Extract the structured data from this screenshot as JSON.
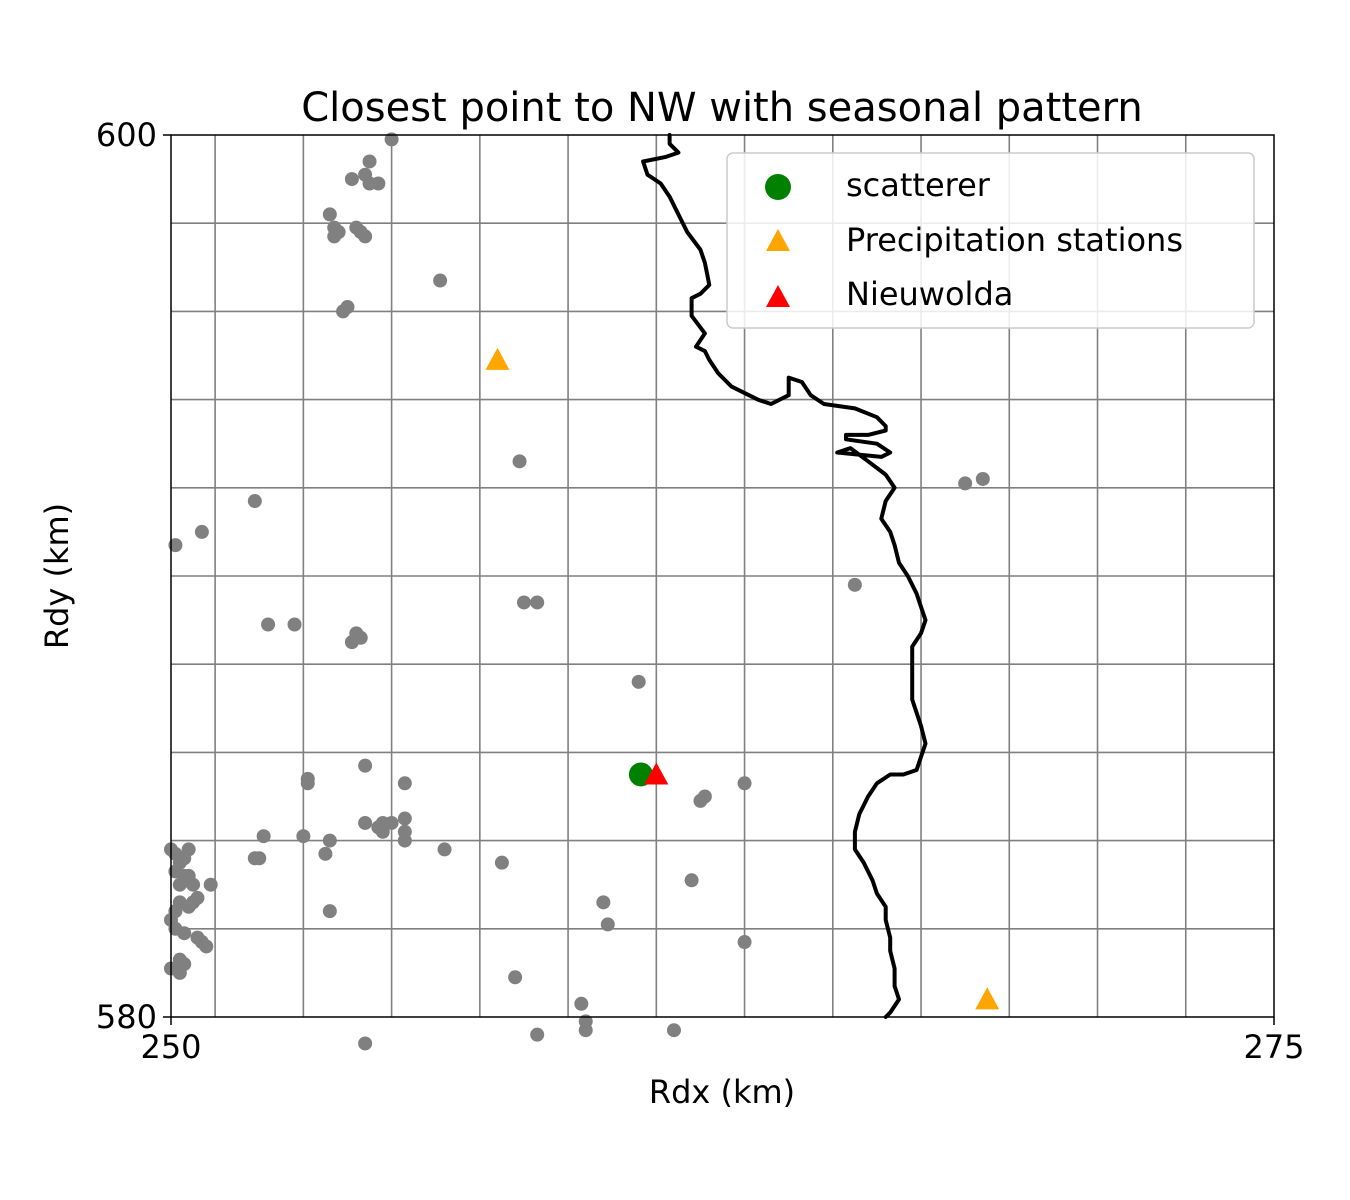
{
  "chart_data": {
    "type": "scatter",
    "title": "Closest point to NW with seasonal pattern",
    "xlabel": "Rdx (km)",
    "ylabel": "Rdy (km)",
    "xlim": [
      250,
      275
    ],
    "ylim": [
      580,
      600
    ],
    "x_ticks": [
      250,
      275
    ],
    "y_ticks": [
      580,
      600
    ],
    "x_tick_labels": [
      "250",
      "275"
    ],
    "y_tick_labels": [
      "580",
      "600"
    ],
    "grid": true,
    "grid_x": [
      251,
      253,
      255,
      257,
      259,
      261,
      263,
      265,
      267,
      269,
      271,
      273
    ],
    "grid_y": [
      582,
      584,
      586,
      588,
      590,
      592,
      594,
      596,
      598
    ],
    "legend_position": "top-right",
    "legend": [
      {
        "label": "scatterer",
        "marker": "circle",
        "color": "#008000"
      },
      {
        "label": "Precipitation stations",
        "marker": "triangle",
        "color": "#FFA500"
      },
      {
        "label": "Nieuwolda",
        "marker": "triangle",
        "color": "#FF0000"
      }
    ],
    "background_points": {
      "color": "#808080",
      "points": [
        [
          255.0,
          599.9
        ],
        [
          254.5,
          599.4
        ],
        [
          254.4,
          599.1
        ],
        [
          254.5,
          598.9
        ],
        [
          254.7,
          598.9
        ],
        [
          254.1,
          599.0
        ],
        [
          253.6,
          598.2
        ],
        [
          253.7,
          597.9
        ],
        [
          253.8,
          597.8
        ],
        [
          253.7,
          597.7
        ],
        [
          254.2,
          597.9
        ],
        [
          254.4,
          597.7
        ],
        [
          254.3,
          597.8
        ],
        [
          256.1,
          596.7
        ],
        [
          254.0,
          596.1
        ],
        [
          253.9,
          596.0
        ],
        [
          257.9,
          592.6
        ],
        [
          251.9,
          591.7
        ],
        [
          250.1,
          590.7
        ],
        [
          250.7,
          591.0
        ],
        [
          265.5,
          589.8
        ],
        [
          268.0,
          592.1
        ],
        [
          268.4,
          592.2
        ],
        [
          258.0,
          589.4
        ],
        [
          258.3,
          589.4
        ],
        [
          252.2,
          588.9
        ],
        [
          252.8,
          588.9
        ],
        [
          254.2,
          588.7
        ],
        [
          254.3,
          588.6
        ],
        [
          254.1,
          588.5
        ],
        [
          260.6,
          587.6
        ],
        [
          254.4,
          585.7
        ],
        [
          255.3,
          585.3
        ],
        [
          263.0,
          585.3
        ],
        [
          262.0,
          584.9
        ],
        [
          262.1,
          585.0
        ],
        [
          253.1,
          585.4
        ],
        [
          253.1,
          585.3
        ],
        [
          254.4,
          584.4
        ],
        [
          254.7,
          584.3
        ],
        [
          254.8,
          584.4
        ],
        [
          255.0,
          584.4
        ],
        [
          254.8,
          584.2
        ],
        [
          255.3,
          584.2
        ],
        [
          255.3,
          584.0
        ],
        [
          255.3,
          584.5
        ],
        [
          252.1,
          584.1
        ],
        [
          253.0,
          584.1
        ],
        [
          253.6,
          584.0
        ],
        [
          252.0,
          583.6
        ],
        [
          251.9,
          583.6
        ],
        [
          256.2,
          583.8
        ],
        [
          253.5,
          583.7
        ],
        [
          257.5,
          583.5
        ],
        [
          261.8,
          583.1
        ],
        [
          250.0,
          583.8
        ],
        [
          250.1,
          583.7
        ],
        [
          250.2,
          583.5
        ],
        [
          250.3,
          583.6
        ],
        [
          250.4,
          583.8
        ],
        [
          250.1,
          583.3
        ],
        [
          250.3,
          583.2
        ],
        [
          250.5,
          583.0
        ],
        [
          250.2,
          583.0
        ],
        [
          250.4,
          583.2
        ],
        [
          250.9,
          583.0
        ],
        [
          250.2,
          582.6
        ],
        [
          250.5,
          582.6
        ],
        [
          250.6,
          582.7
        ],
        [
          250.4,
          582.5
        ],
        [
          250.1,
          582.4
        ],
        [
          250.0,
          582.2
        ],
        [
          250.1,
          582.0
        ],
        [
          250.3,
          581.9
        ],
        [
          250.6,
          581.8
        ],
        [
          250.7,
          581.7
        ],
        [
          250.8,
          581.6
        ],
        [
          250.2,
          581.3
        ],
        [
          250.0,
          581.1
        ],
        [
          250.2,
          581.0
        ],
        [
          250.3,
          581.2
        ],
        [
          253.6,
          582.4
        ],
        [
          259.8,
          582.6
        ],
        [
          259.9,
          582.1
        ],
        [
          263.0,
          581.7
        ],
        [
          257.8,
          580.9
        ],
        [
          259.3,
          580.3
        ],
        [
          258.3,
          579.6
        ],
        [
          259.4,
          579.9
        ],
        [
          259.4,
          579.7
        ],
        [
          261.4,
          579.7
        ],
        [
          254.4,
          579.4
        ]
      ]
    },
    "scatterer": {
      "x": 260.65,
      "y": 585.5
    },
    "precipitation_stations": [
      [
        257.4,
        594.9
      ],
      [
        268.5,
        580.4
      ]
    ],
    "nieuwolda": {
      "x": 261.0,
      "y": 585.5
    },
    "coastline": [
      [
        261.3,
        600.0
      ],
      [
        261.3,
        599.8
      ],
      [
        261.5,
        599.6
      ],
      [
        261.2,
        599.5
      ],
      [
        260.7,
        599.4
      ],
      [
        260.8,
        599.1
      ],
      [
        261.1,
        598.9
      ],
      [
        261.3,
        598.6
      ],
      [
        261.5,
        598.2
      ],
      [
        261.7,
        597.8
      ],
      [
        262.0,
        597.4
      ],
      [
        262.1,
        597.1
      ],
      [
        262.2,
        596.6
      ],
      [
        262.0,
        596.4
      ],
      [
        261.8,
        596.3
      ],
      [
        261.8,
        595.9
      ],
      [
        262.1,
        595.5
      ],
      [
        261.9,
        595.2
      ],
      [
        262.1,
        595.1
      ],
      [
        262.2,
        594.9
      ],
      [
        262.4,
        594.6
      ],
      [
        262.7,
        594.3
      ],
      [
        262.9,
        594.2
      ],
      [
        263.3,
        594.0
      ],
      [
        263.6,
        593.9
      ],
      [
        264.0,
        594.1
      ],
      [
        264.0,
        594.5
      ],
      [
        264.3,
        594.4
      ],
      [
        264.5,
        594.1
      ],
      [
        264.8,
        593.9
      ],
      [
        265.5,
        593.8
      ],
      [
        266.0,
        593.6
      ],
      [
        266.2,
        593.4
      ],
      [
        266.2,
        593.3
      ],
      [
        265.8,
        593.2
      ],
      [
        265.3,
        593.2
      ],
      [
        265.3,
        593.1
      ],
      [
        266.0,
        593.0
      ],
      [
        266.3,
        592.8
      ],
      [
        266.1,
        592.7
      ],
      [
        265.1,
        592.8
      ],
      [
        265.4,
        592.9
      ],
      [
        265.8,
        592.6
      ],
      [
        266.2,
        592.3
      ],
      [
        266.4,
        592.0
      ],
      [
        266.2,
        591.7
      ],
      [
        266.1,
        591.3
      ],
      [
        266.3,
        591.0
      ],
      [
        266.4,
        590.7
      ],
      [
        266.5,
        590.3
      ],
      [
        266.7,
        590.0
      ],
      [
        266.9,
        589.6
      ],
      [
        267.0,
        589.3
      ],
      [
        267.1,
        589.0
      ],
      [
        267.0,
        588.7
      ],
      [
        266.8,
        588.4
      ],
      [
        266.8,
        588.0
      ],
      [
        266.8,
        587.6
      ],
      [
        266.8,
        587.2
      ],
      [
        266.9,
        586.9
      ],
      [
        267.0,
        586.6
      ],
      [
        267.1,
        586.2
      ],
      [
        267.0,
        585.9
      ],
      [
        266.9,
        585.6
      ],
      [
        266.6,
        585.5
      ],
      [
        266.3,
        585.5
      ],
      [
        266.0,
        585.3
      ],
      [
        265.8,
        585.0
      ],
      [
        265.6,
        584.6
      ],
      [
        265.5,
        584.2
      ],
      [
        265.5,
        583.8
      ],
      [
        265.7,
        583.5
      ],
      [
        265.9,
        583.1
      ],
      [
        266.0,
        582.8
      ],
      [
        266.2,
        582.5
      ],
      [
        266.2,
        582.2
      ],
      [
        266.3,
        581.8
      ],
      [
        266.3,
        581.5
      ],
      [
        266.4,
        581.1
      ],
      [
        266.4,
        580.7
      ],
      [
        266.5,
        580.4
      ],
      [
        266.3,
        580.1
      ],
      [
        266.2,
        580.0
      ]
    ]
  }
}
